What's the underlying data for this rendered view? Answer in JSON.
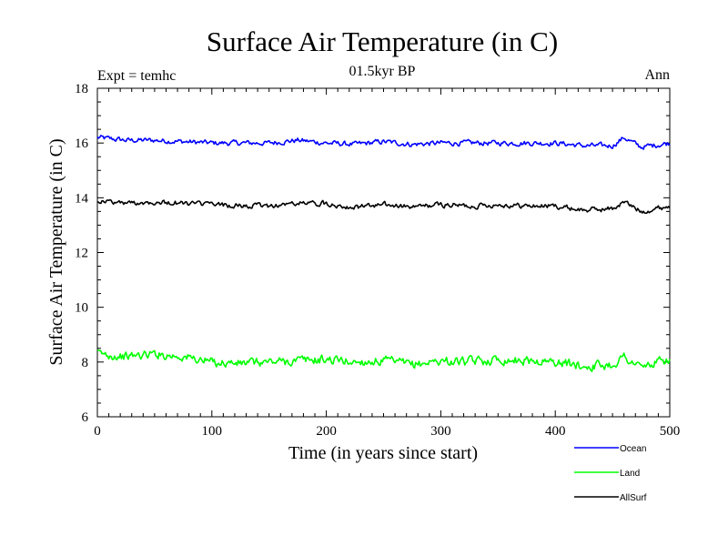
{
  "chart_data": {
    "type": "line",
    "title": "Surface Air Temperature (in C)",
    "subtitle": "01.5kyr BP",
    "left_label": "Expt = temhc",
    "right_label": "Ann",
    "xlabel": "Time (in years since start)",
    "ylabel": "Surface Air Temperature (in C)",
    "xlim": [
      0,
      500
    ],
    "ylim": [
      6,
      18
    ],
    "xticks": [
      0,
      100,
      200,
      300,
      400,
      500
    ],
    "yticks": [
      6,
      8,
      10,
      12,
      14,
      16,
      18
    ],
    "legend_position": "bottom-right",
    "series": [
      {
        "name": "Ocean",
        "color": "#0000ff",
        "x": [
          0,
          25,
          50,
          75,
          100,
          125,
          150,
          175,
          200,
          225,
          250,
          275,
          300,
          325,
          350,
          375,
          400,
          425,
          450,
          460,
          475,
          500
        ],
        "values": [
          16.2,
          16.1,
          16.1,
          16.05,
          16.0,
          16.0,
          16.0,
          16.1,
          16.0,
          15.95,
          16.05,
          15.95,
          16.0,
          16.0,
          16.0,
          16.0,
          16.0,
          15.9,
          15.9,
          16.2,
          15.85,
          16.0
        ]
      },
      {
        "name": "Land",
        "color": "#00ff00",
        "x": [
          0,
          25,
          50,
          75,
          100,
          125,
          150,
          175,
          200,
          225,
          250,
          275,
          300,
          325,
          350,
          375,
          400,
          425,
          450,
          460,
          475,
          500
        ],
        "values": [
          8.3,
          8.2,
          8.3,
          8.2,
          8.0,
          7.95,
          8.0,
          8.05,
          8.1,
          8.0,
          8.05,
          7.9,
          8.05,
          8.0,
          8.1,
          8.05,
          8.0,
          7.85,
          7.9,
          8.2,
          7.8,
          8.1
        ]
      },
      {
        "name": "AllSurf",
        "color": "#000000",
        "x": [
          0,
          25,
          50,
          75,
          100,
          125,
          150,
          175,
          200,
          225,
          250,
          275,
          300,
          325,
          350,
          375,
          400,
          425,
          450,
          460,
          475,
          500
        ],
        "values": [
          13.9,
          13.8,
          13.85,
          13.8,
          13.75,
          13.7,
          13.7,
          13.8,
          13.8,
          13.65,
          13.75,
          13.65,
          13.75,
          13.7,
          13.75,
          13.7,
          13.7,
          13.55,
          13.6,
          13.85,
          13.5,
          13.7
        ]
      }
    ]
  }
}
